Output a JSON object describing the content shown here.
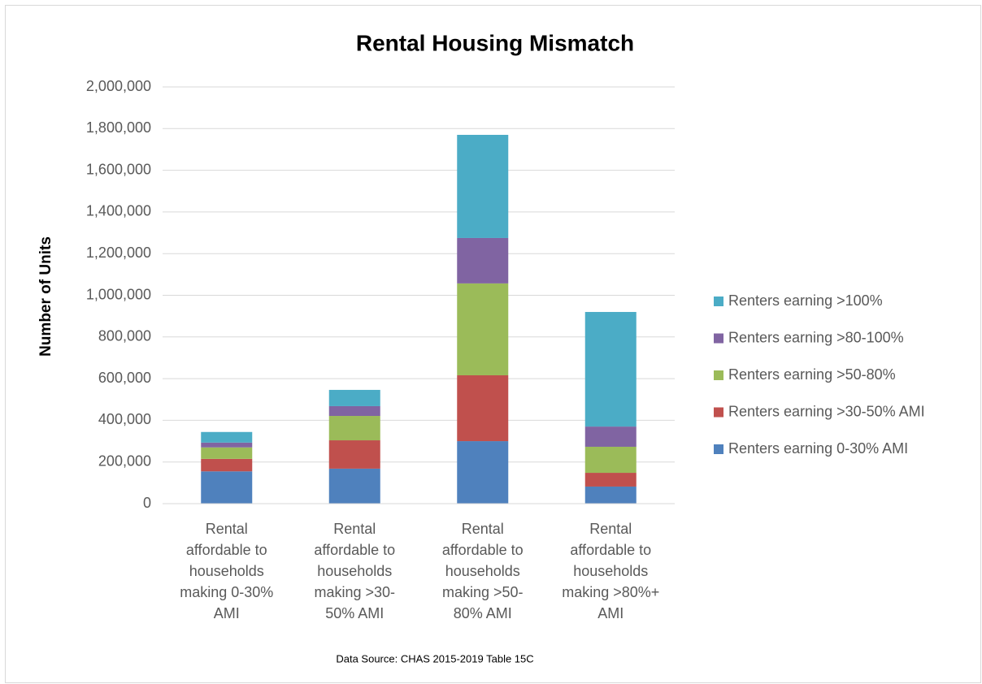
{
  "chart_data": {
    "type": "stacked_bar",
    "title": "Rental Housing Mismatch",
    "y_label": "Number of Units",
    "note": "Data Source: CHAS 2015-2019 Table 15C",
    "categories": [
      "Rental affordable to households making 0-30% AMI",
      "Rental affordable to households making >30-50% AMI",
      "Rental affordable to households making >50-80% AMI",
      "Rental affordable to households making >80%+ AMI"
    ],
    "series": [
      {
        "name": "Renters earning 0-30% AMI",
        "color": "#4f81bd",
        "values": [
          155000,
          168000,
          300000,
          82000
        ]
      },
      {
        "name": "Renters earning >30-50% AMI",
        "color": "#c0504d",
        "values": [
          60000,
          136000,
          316000,
          66000
        ]
      },
      {
        "name": "Renters earning >50-80%",
        "color": "#9bbb59",
        "values": [
          55000,
          117000,
          441000,
          125000
        ]
      },
      {
        "name": "Renters earning >80-100%",
        "color": "#8064a2",
        "values": [
          23000,
          47000,
          218000,
          97000
        ]
      },
      {
        "name": "Renters earning >100%",
        "color": "#4bacc6",
        "values": [
          51000,
          78000,
          495000,
          550000
        ]
      }
    ],
    "ylim": [
      0,
      2000000
    ],
    "yticks": [
      0,
      {
        "value": 200000,
        "label": "200,000"
      },
      {
        "value": 400000,
        "label": "400,000"
      },
      {
        "value": 600000,
        "label": "600,000"
      },
      {
        "value": 800000,
        "label": "800,000"
      },
      {
        "value": 1000000,
        "label": "1,000,000"
      },
      {
        "value": 1200000,
        "label": "1,200,000"
      },
      {
        "value": 1400000,
        "label": "1,400,000"
      },
      {
        "value": 1600000,
        "label": "1,600,000"
      },
      {
        "value": 1800000,
        "label": "1,800,000"
      },
      {
        "value": 2000000,
        "label": "2,000,000"
      }
    ],
    "grid": true,
    "legend": "right"
  }
}
